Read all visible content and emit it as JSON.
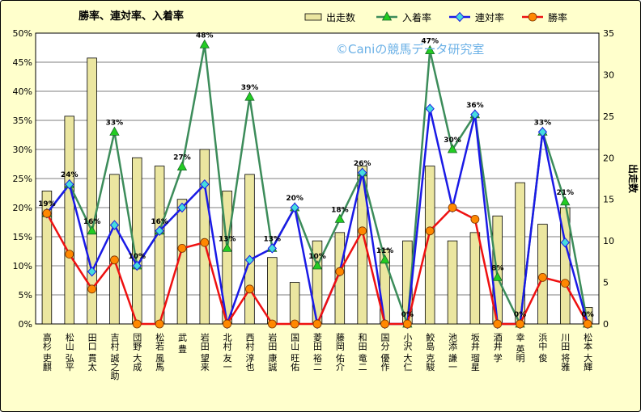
{
  "watermark": "©Caniの競馬データ研究室",
  "colors": {
    "background": "#ffffcc",
    "plot_bg": "#ffffff",
    "border": "#000000",
    "bar_fill": "#ebe6a0",
    "bar_stroke": "#000000",
    "place_rate": "#3c8c5a",
    "place_marker": "#22cc22",
    "top2_rate": "#1a1ae6",
    "top2_marker": "#44dddd",
    "win_rate": "#ee1111",
    "win_marker": "#ff8800",
    "watermark": "#6ab0e6"
  },
  "chart_data": {
    "type": "bar",
    "title": "勝率、連対率、入着率",
    "xlabel": "",
    "ylabel": "",
    "y2label": "出走数",
    "ylim": [
      0,
      50
    ],
    "y2lim": [
      0,
      35
    ],
    "y_ticks": [
      "0%",
      "5%",
      "10%",
      "15%",
      "20%",
      "25%",
      "30%",
      "35%",
      "40%",
      "45%",
      "50%"
    ],
    "y2_ticks": [
      "0",
      "5",
      "10",
      "15",
      "20",
      "25",
      "30",
      "35"
    ],
    "grid": true,
    "legend_position": "top",
    "categories": [
      "高杉 吏麒",
      "松山 弘平",
      "田口 貫太",
      "吉村 誠之助",
      "団野 大成",
      "松若 風馬",
      "武 豊",
      "岩田 望来",
      "北村 友一",
      "西村 淳也",
      "岩田 康誠",
      "国山 旺佑",
      "菱田 裕二",
      "藤岡 佑介",
      "和田 竜二",
      "国分 優作",
      "小沢 大仁",
      "鮫島 克駿",
      "池添 謙一",
      "坂井 瑠星",
      "酒井 学",
      "幸 英明",
      "浜中 俊",
      "川田 将雅",
      "松本 大輝"
    ],
    "series": [
      {
        "name": "出走数",
        "kind": "bar",
        "axis": "right",
        "values": [
          16,
          25,
          32,
          18,
          20,
          19,
          15,
          21,
          16,
          18,
          8,
          5,
          10,
          11,
          19,
          9,
          10,
          19,
          10,
          11,
          13,
          17,
          12,
          14,
          2
        ]
      },
      {
        "name": "入着率",
        "kind": "line",
        "axis": "left",
        "values": [
          19,
          24,
          16,
          33,
          10,
          16,
          27,
          48,
          13,
          39,
          13,
          20,
          10,
          18,
          26,
          11,
          0,
          47,
          30,
          36,
          8,
          0,
          33,
          21,
          0
        ]
      },
      {
        "name": "連対率",
        "kind": "line",
        "axis": "left",
        "values": [
          19,
          24,
          9,
          17,
          10,
          16,
          20,
          24,
          0,
          11,
          13,
          20,
          0,
          9,
          26,
          0,
          0,
          37,
          20,
          36,
          0,
          0,
          33,
          14,
          0
        ]
      },
      {
        "name": "勝率",
        "kind": "line",
        "axis": "left",
        "values": [
          19,
          12,
          6,
          11,
          0,
          0,
          13,
          14,
          0,
          6,
          0,
          0,
          0,
          9,
          16,
          0,
          0,
          16,
          20,
          18,
          0,
          0,
          8,
          7,
          0
        ]
      }
    ],
    "data_labels": [
      "19%",
      "24%",
      "16%",
      "33%",
      "10%",
      "16%",
      "27%",
      "48%",
      "13%",
      "39%",
      "13%",
      "20%",
      "10%",
      "18%",
      "26%",
      "11%",
      "0%",
      "47%",
      "30%",
      "36%",
      "8%",
      "0%",
      "33%",
      "21%",
      "0%"
    ]
  }
}
